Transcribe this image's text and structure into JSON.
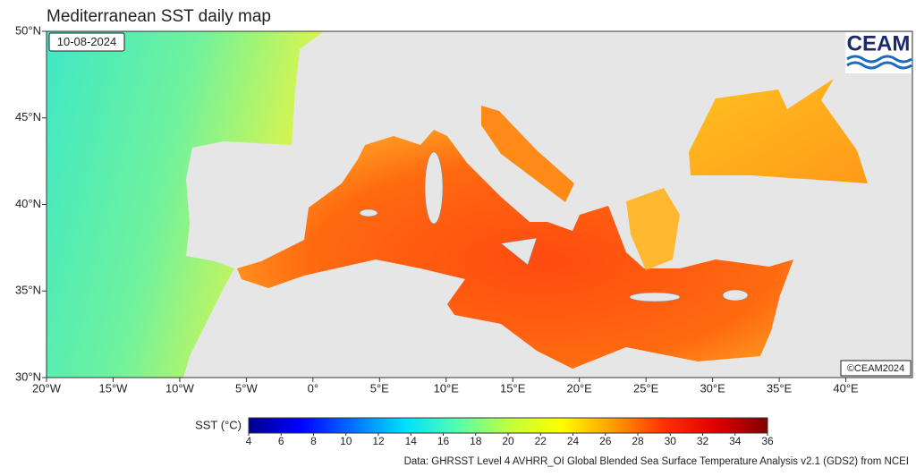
{
  "title": "Mediterranean SST daily map",
  "date": "10-08-2024",
  "logo": "CEAM",
  "copyright": "©CEAM2024",
  "source": "Data: GHRSST Level 4 AVHRR_OI Global Blended Sea Surface Temperature Analysis v2.1 (GDS2) from NCEI",
  "map": {
    "xlim": [
      -20,
      45
    ],
    "ylim": [
      30,
      50
    ],
    "xticks": [
      {
        "value": -20,
        "label": "20°W"
      },
      {
        "value": -15,
        "label": "15°W"
      },
      {
        "value": -10,
        "label": "10°W"
      },
      {
        "value": -5,
        "label": "5°W"
      },
      {
        "value": 0,
        "label": "0°"
      },
      {
        "value": 5,
        "label": "5°E"
      },
      {
        "value": 10,
        "label": "10°E"
      },
      {
        "value": 15,
        "label": "15°E"
      },
      {
        "value": 20,
        "label": "20°E"
      },
      {
        "value": 25,
        "label": "25°E"
      },
      {
        "value": 30,
        "label": "30°E"
      },
      {
        "value": 35,
        "label": "35°E"
      },
      {
        "value": 40,
        "label": "40°E"
      }
    ],
    "yticks": [
      {
        "value": 30,
        "label": "30°N"
      },
      {
        "value": 35,
        "label": "35°N"
      },
      {
        "value": 40,
        "label": "40°N"
      },
      {
        "value": 45,
        "label": "45°N"
      },
      {
        "value": 50,
        "label": "50°N"
      }
    ]
  },
  "colorbar": {
    "label": "SST (°C)",
    "lim": [
      4,
      36
    ],
    "ticks": [
      4,
      6,
      8,
      10,
      12,
      14,
      16,
      18,
      20,
      22,
      24,
      26,
      28,
      30,
      32,
      34,
      36
    ],
    "colors": [
      "#00008f",
      "#0000ff",
      "#0070ff",
      "#00dfff",
      "#50ffaf",
      "#bfff40",
      "#ffff00",
      "#ff9f00",
      "#ff3000",
      "#df0000",
      "#800000"
    ]
  }
}
